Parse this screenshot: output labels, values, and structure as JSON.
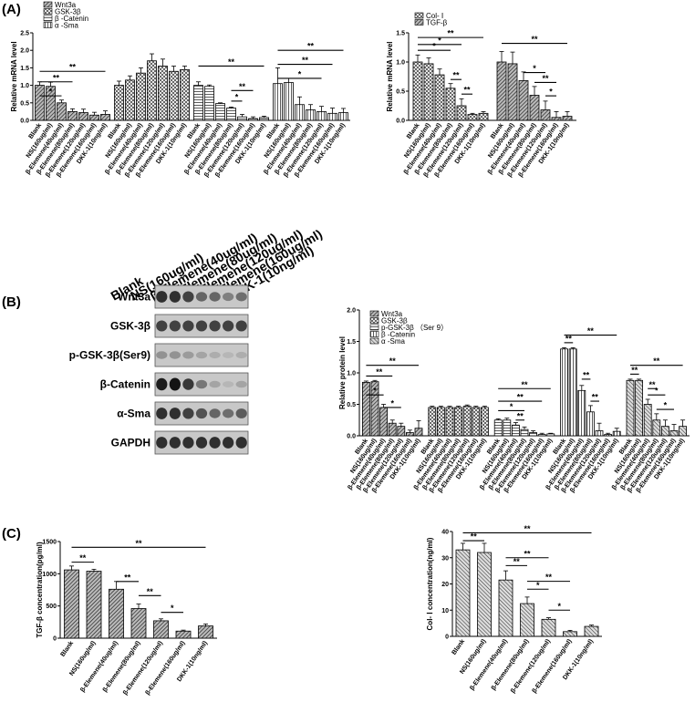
{
  "panel_labels": [
    "(A)",
    "(B)",
    "(C)"
  ],
  "blot": {
    "lanes": [
      "Blank",
      "NS(160ug/ml)",
      "β-Elemene(40ug/ml)",
      "β-Elemene(80ug/ml)",
      "β-Elemene(120ug/ml)",
      "β-Elemene(160ug/ml)",
      "DKK-1(10ng/ml)"
    ],
    "bands": [
      {
        "label": "Wnt3a",
        "intensity": [
          0.85,
          0.85,
          0.75,
          0.55,
          0.55,
          0.4,
          0.5
        ]
      },
      {
        "label": "GSK-3β",
        "intensity": [
          0.75,
          0.75,
          0.75,
          0.75,
          0.75,
          0.75,
          0.75
        ]
      },
      {
        "label": "p-GSK-3β(Ser9)",
        "intensity": [
          0.3,
          0.3,
          0.25,
          0.2,
          0.15,
          0.1,
          0.15
        ]
      },
      {
        "label": "β-Catenin",
        "intensity": [
          0.95,
          1.0,
          0.8,
          0.45,
          0.2,
          0.1,
          0.2
        ]
      },
      {
        "label": "α-Sma",
        "intensity": [
          0.85,
          0.85,
          0.75,
          0.65,
          0.55,
          0.5,
          0.6
        ]
      },
      {
        "label": "GAPDH",
        "intensity": [
          0.85,
          0.85,
          0.85,
          0.85,
          0.85,
          0.85,
          0.85
        ]
      }
    ]
  },
  "chart_data": [
    {
      "id": "A1",
      "type": "bar",
      "ylabel": "Relative mRNA level",
      "ylim": [
        0,
        2.5
      ],
      "yticks": [
        "0.0",
        "0.5",
        "1.0",
        "1.5",
        "2.0",
        "2.5"
      ],
      "categories": [
        "Blank",
        "NS(160ug/ml)",
        "β-Elemene(40ug/ml)",
        "β-Elemene(80ug/ml)",
        "β-Elemene(120ug/ml)",
        "β-Elemene(160ug/ml)",
        "DKK-1(10ng/ml)"
      ],
      "legend": [
        "Wnt3a",
        "GSK-3β",
        "β -Catenin",
        "α -Sma"
      ],
      "series": [
        {
          "name": "Wnt3a",
          "pattern": "hatch",
          "values": [
            1.0,
            0.97,
            0.5,
            0.25,
            0.22,
            0.15,
            0.17
          ],
          "errors": [
            0.1,
            0.12,
            0.08,
            0.08,
            0.1,
            0.08,
            0.1
          ]
        },
        {
          "name": "GSK-3β",
          "pattern": "cross",
          "values": [
            1.0,
            1.15,
            1.35,
            1.7,
            1.55,
            1.4,
            1.45
          ],
          "errors": [
            0.12,
            0.12,
            0.15,
            0.2,
            0.2,
            0.15,
            0.1
          ]
        },
        {
          "name": "β -Catenin",
          "pattern": "hlines",
          "values": [
            1.0,
            0.97,
            0.48,
            0.35,
            0.1,
            0.05,
            0.08
          ],
          "errors": [
            0.1,
            0.04,
            0.02,
            0.03,
            0.07,
            0.05,
            0.04
          ]
        },
        {
          "name": "α -Sma",
          "pattern": "vlines",
          "values": [
            1.05,
            1.08,
            0.45,
            0.3,
            0.25,
            0.2,
            0.22
          ],
          "errors": [
            0.45,
            0.12,
            0.22,
            0.15,
            0.15,
            0.15,
            0.12
          ]
        }
      ],
      "brackets": [
        {
          "series": 0,
          "from": 0,
          "to": 2,
          "level": 0.7,
          "label": "*"
        },
        {
          "series": 0,
          "from": 0,
          "to": 3,
          "level": 1.1,
          "label": "**"
        },
        {
          "series": 0,
          "from": 0,
          "to": 6,
          "level": 1.4,
          "label": "**"
        },
        {
          "series": 2,
          "from": 0,
          "to": 6,
          "level": 1.55,
          "label": "**"
        },
        {
          "series": 2,
          "from": 3,
          "to": 4,
          "level": 0.55,
          "label": "*"
        },
        {
          "series": 2,
          "from": 3,
          "to": 5,
          "level": 0.85,
          "label": "**"
        },
        {
          "series": 3,
          "from": 0,
          "to": 4,
          "level": 1.2,
          "label": "*"
        },
        {
          "series": 3,
          "from": 0,
          "to": 5,
          "level": 1.6,
          "label": "**"
        },
        {
          "series": 3,
          "from": 0,
          "to": 6,
          "level": 2.0,
          "label": "**"
        }
      ]
    },
    {
      "id": "A2",
      "type": "bar",
      "ylabel": "Relative mRNA level",
      "ylim": [
        0,
        1.5
      ],
      "yticks": [
        "0.0",
        "0.5",
        "1.0",
        "1.5"
      ],
      "categories": [
        "Blank",
        "NS(160ug/ml)",
        "β-Elemene(40ug/ml)",
        "β-Elemene(80ug/ml)",
        "β-Elemene(120ug/ml)",
        "β-Elemene(160ug/ml)",
        "DKK-1(10ng/ml)"
      ],
      "legend": [
        "Col- Ⅰ",
        "TGF-β"
      ],
      "series": [
        {
          "name": "Col- Ⅰ",
          "pattern": "cross",
          "values": [
            1.0,
            0.97,
            0.78,
            0.55,
            0.25,
            0.1,
            0.12
          ],
          "errors": [
            0.12,
            0.1,
            0.1,
            0.08,
            0.12,
            0.02,
            0.03
          ]
        },
        {
          "name": "TGF-β",
          "pattern": "hatch",
          "values": [
            1.0,
            0.97,
            0.68,
            0.43,
            0.18,
            0.05,
            0.07
          ],
          "errors": [
            0.18,
            0.2,
            0.15,
            0.15,
            0.15,
            0.1,
            0.08
          ]
        }
      ],
      "brackets": [
        {
          "series": 0,
          "from": 0,
          "to": 3,
          "level": 1.2,
          "label": "*"
        },
        {
          "series": 0,
          "from": 0,
          "to": 4,
          "level": 1.3,
          "label": "*"
        },
        {
          "series": 0,
          "from": 0,
          "to": 6,
          "level": 1.42,
          "label": "**"
        },
        {
          "series": 0,
          "from": 3,
          "to": 4,
          "level": 0.7,
          "label": "**"
        },
        {
          "series": 0,
          "from": 4,
          "to": 5,
          "level": 0.45,
          "label": "**"
        },
        {
          "series": 1,
          "from": 0,
          "to": 6,
          "level": 1.32,
          "label": "**"
        },
        {
          "series": 1,
          "from": 2,
          "to": 4,
          "level": 0.82,
          "label": "*"
        },
        {
          "series": 1,
          "from": 3,
          "to": 5,
          "level": 0.65,
          "label": "**"
        },
        {
          "series": 1,
          "from": 4,
          "to": 5,
          "level": 0.42,
          "label": "*"
        }
      ]
    },
    {
      "id": "B",
      "type": "bar",
      "ylabel": "Relative protein level",
      "ylim": [
        0,
        2.0
      ],
      "yticks": [
        "0.0",
        "0.5",
        "1.0",
        "1.5",
        "2.0"
      ],
      "categories": [
        "Blank",
        "NS(160ug/ml)",
        "β-Elemene(40ug/ml)",
        "β-Elemene(80ug/ml)",
        "β-Elemene(120ug/ml)",
        "β-Elemene(160ug/ml)",
        "DKK-1(10ng/ml)"
      ],
      "legend": [
        "Wnt3a",
        "GSK-3β",
        "p-GSK-3β （Ser 9）",
        "β -Catenin",
        "α -Sma"
      ],
      "series": [
        {
          "name": "Wnt3a",
          "pattern": "hatch",
          "values": [
            0.85,
            0.86,
            0.45,
            0.2,
            0.15,
            0.05,
            0.12
          ],
          "errors": [
            0.02,
            0.02,
            0.05,
            0.05,
            0.05,
            0.04,
            0.12
          ]
        },
        {
          "name": "GSK-3β",
          "pattern": "cross",
          "values": [
            0.45,
            0.45,
            0.45,
            0.45,
            0.47,
            0.45,
            0.45
          ],
          "errors": [
            0.02,
            0.02,
            0.02,
            0.02,
            0.02,
            0.02,
            0.02
          ]
        },
        {
          "name": "p-GSK-3β （Ser 9）",
          "pattern": "hlines",
          "values": [
            0.25,
            0.25,
            0.17,
            0.1,
            0.05,
            0.02,
            0.03
          ],
          "errors": [
            0.02,
            0.03,
            0.04,
            0.04,
            0.03,
            0.02,
            0.01
          ]
        },
        {
          "name": "β -Catenin",
          "pattern": "vlines",
          "values": [
            1.38,
            1.38,
            0.72,
            0.38,
            0.08,
            0.02,
            0.07
          ],
          "errors": [
            0.02,
            0.02,
            0.08,
            0.1,
            0.12,
            0.02,
            0.05
          ]
        },
        {
          "name": "α -Sma",
          "pattern": "hatch2",
          "values": [
            0.88,
            0.88,
            0.5,
            0.25,
            0.15,
            0.08,
            0.15
          ],
          "errors": [
            0.02,
            0.02,
            0.08,
            0.1,
            0.1,
            0.1,
            0.1
          ]
        }
      ],
      "brackets": [
        {
          "series": 0,
          "from": 0,
          "to": 2,
          "level": 0.65,
          "label": "*"
        },
        {
          "series": 0,
          "from": 0,
          "to": 3,
          "level": 0.95,
          "label": "**"
        },
        {
          "series": 0,
          "from": 0,
          "to": 6,
          "level": 1.12,
          "label": "**"
        },
        {
          "series": 0,
          "from": 2,
          "to": 4,
          "level": 0.45,
          "label": "*"
        },
        {
          "series": 2,
          "from": 0,
          "to": 3,
          "level": 0.4,
          "label": "*"
        },
        {
          "series": 2,
          "from": 0,
          "to": 5,
          "level": 0.55,
          "label": "**"
        },
        {
          "series": 2,
          "from": 0,
          "to": 6,
          "level": 0.75,
          "label": "**"
        },
        {
          "series": 2,
          "from": 2,
          "to": 3,
          "level": 0.25,
          "label": "**"
        },
        {
          "series": 3,
          "from": 0,
          "to": 6,
          "level": 1.6,
          "label": "**"
        },
        {
          "series": 3,
          "from": 0,
          "to": 1,
          "level": 1.48,
          "label": "**"
        },
        {
          "series": 3,
          "from": 2,
          "to": 3,
          "level": 0.9,
          "label": "**"
        },
        {
          "series": 3,
          "from": 3,
          "to": 4,
          "level": 0.55,
          "label": "**"
        },
        {
          "series": 4,
          "from": 0,
          "to": 6,
          "level": 1.12,
          "label": "**"
        },
        {
          "series": 4,
          "from": 0,
          "to": 1,
          "level": 0.98,
          "label": "**"
        },
        {
          "series": 4,
          "from": 2,
          "to": 3,
          "level": 0.75,
          "label": "**"
        },
        {
          "series": 4,
          "from": 2,
          "to": 4,
          "level": 0.65,
          "label": "*"
        },
        {
          "series": 4,
          "from": 3,
          "to": 5,
          "level": 0.42,
          "label": "*"
        }
      ]
    },
    {
      "id": "C1",
      "type": "bar",
      "ylabel": "TGF-β  concentration(pg/ml)",
      "ylim": [
        0,
        1500
      ],
      "yticks": [
        "0",
        "500",
        "1000",
        "1500"
      ],
      "categories": [
        "Blank",
        "NS(160ug/ml)",
        "β-Elemene(40ug/ml)",
        "β-Elemene(80ug/ml)",
        "β-Elemene(120ug/ml)",
        "β-Elemene(160ug/ml)",
        "DKK-1(10ng/ml)"
      ],
      "pattern": "hatch",
      "values": [
        1060,
        1040,
        760,
        460,
        270,
        110,
        190
      ],
      "errors": [
        60,
        30,
        120,
        70,
        30,
        15,
        30
      ],
      "brackets": [
        {
          "from": 0,
          "to": 1,
          "level": 1180,
          "label": "**"
        },
        {
          "from": 0,
          "to": 6,
          "level": 1410,
          "label": "**"
        },
        {
          "from": 2,
          "to": 3,
          "level": 880,
          "label": "**"
        },
        {
          "from": 3,
          "to": 4,
          "level": 660,
          "label": "**"
        },
        {
          "from": 4,
          "to": 5,
          "level": 400,
          "label": "*"
        }
      ]
    },
    {
      "id": "C2",
      "type": "bar",
      "ylabel": "Col- Ⅰ  concentration(ng/ml)",
      "ylim": [
        0,
        40
      ],
      "yticks": [
        "0",
        "10",
        "20",
        "30",
        "40"
      ],
      "categories": [
        "Blank",
        "NS(160ug/ml)",
        "β-Elemene(40ug/ml)",
        "β-Elemene(80ug/ml)",
        "β-Elemene(120ug/ml)",
        "β-Elemene(160ug/ml)",
        "DKK-1(10ng/ml)"
      ],
      "pattern": "hatch2",
      "values": [
        33,
        32,
        21.5,
        12.5,
        6.5,
        1.8,
        3.8
      ],
      "errors": [
        2.5,
        3.5,
        3.5,
        2.5,
        0.6,
        0.5,
        0.5
      ],
      "brackets": [
        {
          "from": 0,
          "to": 1,
          "level": 36.5,
          "label": "**"
        },
        {
          "from": 0,
          "to": 6,
          "level": 39.5,
          "label": "**"
        },
        {
          "from": 2,
          "to": 3,
          "level": 27,
          "label": "**"
        },
        {
          "from": 2,
          "to": 4,
          "level": 30,
          "label": "**"
        },
        {
          "from": 3,
          "to": 4,
          "level": 18,
          "label": "*"
        },
        {
          "from": 3,
          "to": 5,
          "level": 21,
          "label": "**"
        },
        {
          "from": 4,
          "to": 5,
          "level": 10,
          "label": "*"
        }
      ]
    }
  ]
}
